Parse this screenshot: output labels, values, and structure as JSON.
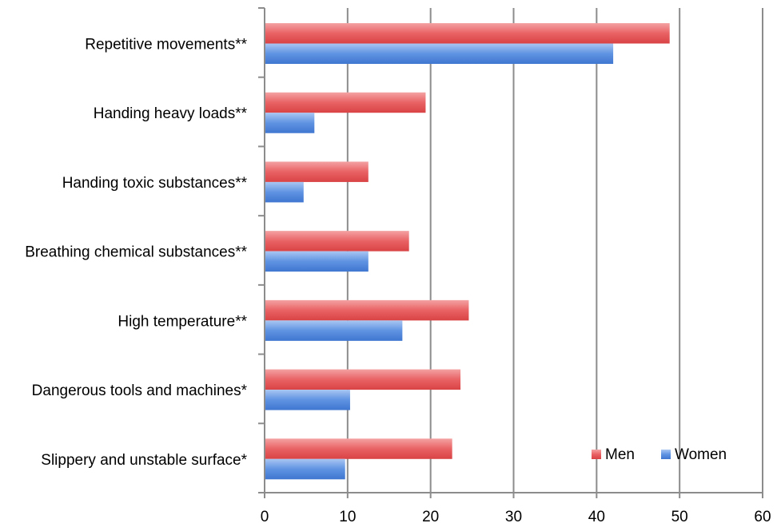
{
  "chart_data": {
    "type": "bar",
    "orientation": "horizontal",
    "categories": [
      "Repetitive movements**",
      "Handing heavy loads**",
      "Handing toxic substances**",
      "Breathing chemical substances**",
      "High temperature**",
      "Dangerous tools and machines*",
      "Slippery and unstable surface*"
    ],
    "series": [
      {
        "name": "Men",
        "color": "#e8595b",
        "values": [
          48.8,
          19.4,
          12.5,
          17.4,
          24.6,
          23.6,
          22.6
        ]
      },
      {
        "name": "Women",
        "color": "#5b8fe0",
        "values": [
          42.0,
          6.0,
          4.7,
          12.5,
          16.6,
          10.3,
          9.7
        ]
      }
    ],
    "xlim": [
      0,
      60
    ],
    "x_ticks": [
      "0",
      "10",
      "20",
      "30",
      "40",
      "50",
      "60"
    ],
    "grid": true,
    "legend": "bottom-right",
    "title": "",
    "xlabel": "",
    "ylabel": ""
  }
}
